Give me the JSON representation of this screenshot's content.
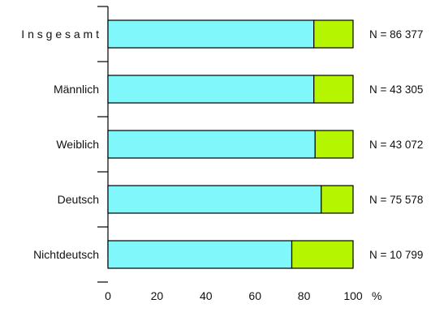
{
  "chart_data": {
    "type": "bar",
    "orientation": "horizontal",
    "stacked": true,
    "categories": [
      "I n s g e s a m t",
      "Männlich",
      "Weiblich",
      "Deutsch",
      "Nichtdeutsch"
    ],
    "annotations": [
      "N = 86 377",
      "N = 43 305",
      "N = 43 072",
      "N = 75 578",
      "N = 10 799"
    ],
    "series": [
      {
        "values": [
          84,
          84,
          84.5,
          87,
          75
        ],
        "color": "#7ff7fb"
      },
      {
        "values": [
          16,
          16,
          15.5,
          13,
          25
        ],
        "color": "#b6f500"
      }
    ],
    "xlim": [
      0,
      100
    ],
    "xticks": [
      "0",
      "20",
      "40",
      "60",
      "80",
      "100"
    ],
    "xunit": "%",
    "grid": false
  }
}
